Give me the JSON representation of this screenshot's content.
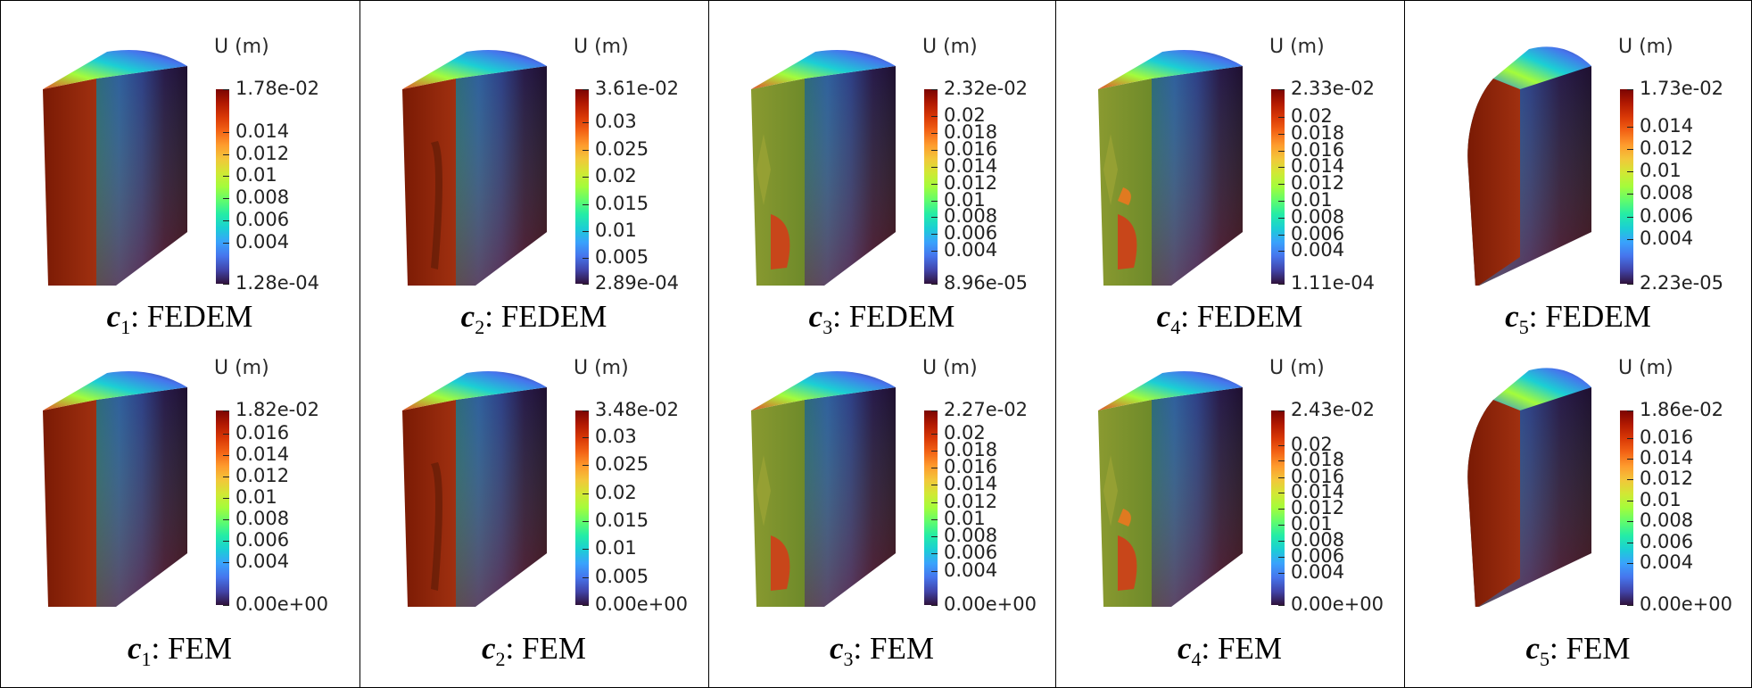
{
  "legend_title": "U (m)",
  "colormap": [
    "#30123b",
    "#4145ab",
    "#4675ed",
    "#39a2fc",
    "#1bcfd4",
    "#24eca6",
    "#61fc6c",
    "#a4fc3b",
    "#d1e834",
    "#f3c63a",
    "#fe9b2d",
    "#f36315",
    "#d93806",
    "#b11901",
    "#7a0402"
  ],
  "panels": [
    {
      "row": 0,
      "col": 0,
      "letter": "c",
      "sub": "1",
      "label": ": FEDEM",
      "max": "1.78e-02",
      "min": "1.28e-04",
      "ticks": [
        {
          "t": "0.014",
          "f": 0.22
        },
        {
          "t": "0.012",
          "f": 0.334
        },
        {
          "t": "0.01",
          "f": 0.447
        },
        {
          "t": "0.008",
          "f": 0.561
        },
        {
          "t": "0.006",
          "f": 0.674
        },
        {
          "t": "0.004",
          "f": 0.788
        }
      ]
    },
    {
      "row": 0,
      "col": 1,
      "letter": "c",
      "sub": "2",
      "label": ": FEDEM",
      "max": "3.61e-02",
      "min": "2.89e-04",
      "ticks": [
        {
          "t": "0.03",
          "f": 0.17
        },
        {
          "t": "0.025",
          "f": 0.31
        },
        {
          "t": "0.02",
          "f": 0.45
        },
        {
          "t": "0.015",
          "f": 0.59
        },
        {
          "t": "0.01",
          "f": 0.729
        },
        {
          "t": "0.005",
          "f": 0.869
        }
      ]
    },
    {
      "row": 0,
      "col": 2,
      "letter": "c",
      "sub": "3",
      "label": ": FEDEM",
      "max": "2.32e-02",
      "min": "8.96e-05",
      "ticks": [
        {
          "t": "0.02",
          "f": 0.139
        },
        {
          "t": "0.018",
          "f": 0.226
        },
        {
          "t": "0.016",
          "f": 0.312
        },
        {
          "t": "0.014",
          "f": 0.399
        },
        {
          "t": "0.012",
          "f": 0.485
        },
        {
          "t": "0.01",
          "f": 0.572
        },
        {
          "t": "0.008",
          "f": 0.658
        },
        {
          "t": "0.006",
          "f": 0.745
        },
        {
          "t": "0.004",
          "f": 0.831
        }
      ]
    },
    {
      "row": 0,
      "col": 3,
      "letter": "c",
      "sub": "4",
      "label": ": FEDEM",
      "max": "2.33e-02",
      "min": "1.11e-04",
      "ticks": [
        {
          "t": "0.02",
          "f": 0.142
        },
        {
          "t": "0.018",
          "f": 0.229
        },
        {
          "t": "0.016",
          "f": 0.315
        },
        {
          "t": "0.014",
          "f": 0.401
        },
        {
          "t": "0.012",
          "f": 0.487
        },
        {
          "t": "0.01",
          "f": 0.574
        },
        {
          "t": "0.008",
          "f": 0.66
        },
        {
          "t": "0.006",
          "f": 0.746
        },
        {
          "t": "0.004",
          "f": 0.832
        }
      ]
    },
    {
      "row": 0,
      "col": 4,
      "letter": "c",
      "sub": "5",
      "label": ": FEDEM",
      "max": "1.73e-02",
      "min": "2.23e-05",
      "ticks": [
        {
          "t": "0.014",
          "f": 0.191
        },
        {
          "t": "0.012",
          "f": 0.307
        },
        {
          "t": "0.01",
          "f": 0.422
        },
        {
          "t": "0.008",
          "f": 0.538
        },
        {
          "t": "0.006",
          "f": 0.654
        },
        {
          "t": "0.004",
          "f": 0.769
        }
      ]
    },
    {
      "row": 1,
      "col": 0,
      "letter": "c",
      "sub": "1",
      "label": ": FEM",
      "max": "1.82e-02",
      "min": "0.00e+00",
      "ticks": [
        {
          "t": "0.016",
          "f": 0.121
        },
        {
          "t": "0.014",
          "f": 0.231
        },
        {
          "t": "0.012",
          "f": 0.341
        },
        {
          "t": "0.01",
          "f": 0.451
        },
        {
          "t": "0.008",
          "f": 0.56
        },
        {
          "t": "0.006",
          "f": 0.67
        },
        {
          "t": "0.004",
          "f": 0.78
        }
      ]
    },
    {
      "row": 1,
      "col": 1,
      "letter": "c",
      "sub": "2",
      "label": ": FEM",
      "max": "3.48e-02",
      "min": "0.00e+00",
      "ticks": [
        {
          "t": "0.03",
          "f": 0.138
        },
        {
          "t": "0.025",
          "f": 0.282
        },
        {
          "t": "0.02",
          "f": 0.425
        },
        {
          "t": "0.015",
          "f": 0.569
        },
        {
          "t": "0.01",
          "f": 0.713
        },
        {
          "t": "0.005",
          "f": 0.856
        }
      ]
    },
    {
      "row": 1,
      "col": 2,
      "letter": "c",
      "sub": "3",
      "label": ": FEM",
      "max": "2.27e-02",
      "min": "0.00e+00",
      "ticks": [
        {
          "t": "0.02",
          "f": 0.119
        },
        {
          "t": "0.018",
          "f": 0.207
        },
        {
          "t": "0.016",
          "f": 0.295
        },
        {
          "t": "0.014",
          "f": 0.383
        },
        {
          "t": "0.012",
          "f": 0.471
        },
        {
          "t": "0.01",
          "f": 0.559
        },
        {
          "t": "0.008",
          "f": 0.648
        },
        {
          "t": "0.006",
          "f": 0.736
        },
        {
          "t": "0.004",
          "f": 0.824
        }
      ]
    },
    {
      "row": 1,
      "col": 3,
      "letter": "c",
      "sub": "4",
      "label": ": FEM",
      "max": "2.43e-02",
      "min": "0.00e+00",
      "ticks": [
        {
          "t": "0.02",
          "f": 0.177
        },
        {
          "t": "0.018",
          "f": 0.259
        },
        {
          "t": "0.016",
          "f": 0.342
        },
        {
          "t": "0.014",
          "f": 0.424
        },
        {
          "t": "0.012",
          "f": 0.506
        },
        {
          "t": "0.01",
          "f": 0.588
        },
        {
          "t": "0.008",
          "f": 0.671
        },
        {
          "t": "0.006",
          "f": 0.753
        },
        {
          "t": "0.004",
          "f": 0.835
        }
      ]
    },
    {
      "row": 1,
      "col": 4,
      "letter": "c",
      "sub": "5",
      "label": ": FEM",
      "max": "1.86e-02",
      "min": "0.00e+00",
      "ticks": [
        {
          "t": "0.016",
          "f": 0.14
        },
        {
          "t": "0.014",
          "f": 0.247
        },
        {
          "t": "0.012",
          "f": 0.355
        },
        {
          "t": "0.01",
          "f": 0.462
        },
        {
          "t": "0.008",
          "f": 0.57
        },
        {
          "t": "0.006",
          "f": 0.677
        },
        {
          "t": "0.004",
          "f": 0.785
        }
      ]
    }
  ]
}
